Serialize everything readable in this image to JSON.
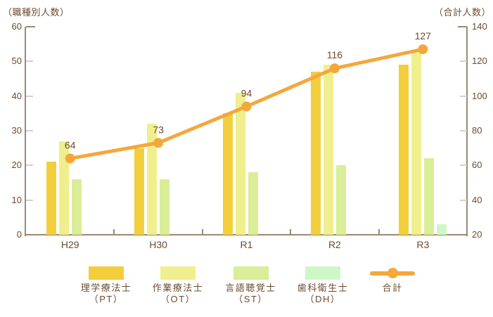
{
  "chart_data": {
    "type": "bar+line",
    "categories": [
      "H29",
      "H30",
      "R1",
      "R2",
      "R3"
    ],
    "series": [
      {
        "name": "理学療法士（PT）",
        "legend": [
          "理学療法士",
          "（PT）"
        ],
        "type": "bar",
        "axis": "left",
        "color": "#F2CE3C",
        "values": [
          21,
          25,
          35,
          47,
          49
        ]
      },
      {
        "name": "作業療法士（OT）",
        "legend": [
          "作業療法士",
          "（OT）"
        ],
        "type": "bar",
        "axis": "left",
        "color": "#F0EF8D",
        "values": [
          27,
          32,
          41,
          49,
          53
        ]
      },
      {
        "name": "言語聴覚士（ST）",
        "legend": [
          "言語聴覚士",
          "（ST）"
        ],
        "type": "bar",
        "axis": "left",
        "color": "#D9EE97",
        "values": [
          16,
          16,
          18,
          20,
          22
        ]
      },
      {
        "name": "歯科衛生士（DH）",
        "legend": [
          "歯科衛生士",
          "（DH）"
        ],
        "type": "bar",
        "axis": "left",
        "color": "#CDF8C5",
        "values": [
          0,
          0,
          0,
          0,
          3
        ]
      },
      {
        "name": "合計",
        "legend": [
          "合計"
        ],
        "type": "line",
        "axis": "right",
        "color": "#F5A73B",
        "values": [
          64,
          73,
          94,
          116,
          127
        ],
        "data_labels": true
      }
    ],
    "left_axis": {
      "label": "（職種別人数）",
      "min": 0,
      "max": 60,
      "ticks": [
        0,
        10,
        20,
        30,
        40,
        50,
        60
      ]
    },
    "right_axis": {
      "label": "（合計人数）",
      "min": 20,
      "max": 140,
      "ticks": [
        20,
        40,
        60,
        80,
        100,
        120,
        140
      ]
    },
    "grid": false,
    "legend_position": "bottom"
  },
  "colors": {
    "axis": "#9A8A72",
    "text": "#6B4B2F",
    "minor_tick": "#D2D2D2",
    "background": "#FFFFFF"
  }
}
